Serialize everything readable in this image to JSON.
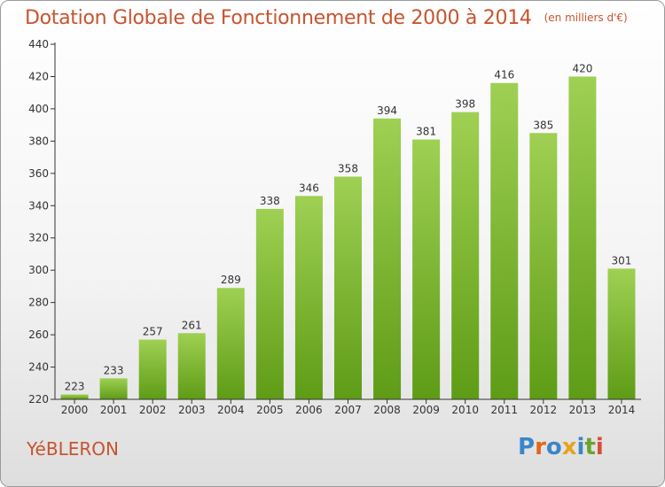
{
  "header": {
    "title": "Dotation Globale de Fonctionnement de 2000 à 2014",
    "unit": "(en milliers d'€)"
  },
  "footer": {
    "commune": "YéBLERON",
    "logo_text": "Proxiti"
  },
  "colors": {
    "title": "#c7542f",
    "bar_light": "#9fd053",
    "bar_dark": "#5e9c16",
    "axis": "#333333",
    "grid": "#cccccc"
  },
  "chart_data": {
    "type": "bar",
    "categories": [
      "2000",
      "2001",
      "2002",
      "2003",
      "2004",
      "2005",
      "2006",
      "2007",
      "2008",
      "2009",
      "2010",
      "2011",
      "2012",
      "2013",
      "2014"
    ],
    "values": [
      223,
      233,
      257,
      261,
      289,
      338,
      346,
      358,
      394,
      381,
      398,
      416,
      385,
      420,
      301
    ],
    "ylim": [
      220,
      440
    ],
    "yticks": [
      220,
      240,
      260,
      280,
      300,
      320,
      340,
      360,
      380,
      400,
      420,
      440
    ],
    "grid": false,
    "data_labels": true
  }
}
